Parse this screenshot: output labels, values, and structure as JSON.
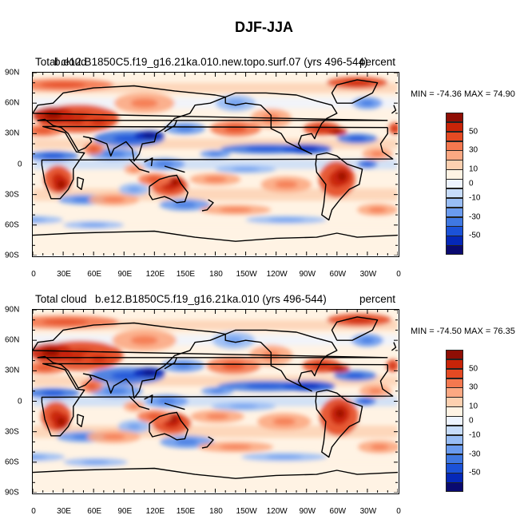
{
  "title": "DJF-JJA",
  "colors": {
    "palette": [
      "#0a0a70",
      "#0528b8",
      "#1b52d8",
      "#3f78e2",
      "#6a9bef",
      "#98bdf5",
      "#c7dcfa",
      "#eef4ff",
      "#fff3e4",
      "#fdd0b0",
      "#fca882",
      "#f4784f",
      "#e44a23",
      "#c82408",
      "#8f0e05"
    ],
    "land_outline": "#000000"
  },
  "icons": {
    "coastline": "coastline-outline",
    "tick": "axis-tick"
  },
  "axes": {
    "y_labels": [
      "90N",
      "60N",
      "30N",
      "0",
      "30S",
      "60S",
      "90S"
    ],
    "x_labels": [
      "0",
      "30E",
      "60E",
      "90E",
      "120E",
      "150E",
      "180",
      "150W",
      "120W",
      "90W",
      "60W",
      "30W",
      "0"
    ]
  },
  "colorbar": {
    "labels": [
      "50",
      "30",
      "10",
      "0",
      "-10",
      "-30",
      "-50"
    ],
    "levels": [
      -60,
      -50,
      -40,
      -30,
      -20,
      -10,
      -5,
      0,
      5,
      10,
      20,
      30,
      40,
      50,
      60
    ]
  },
  "panels": [
    {
      "left_label": "Total cloud",
      "case": "b.e12.B1850C5.f19_g16.21ka.010.new.topo.surf.07 (yrs 496-544)",
      "units": "percent",
      "minmax": "MIN = -74.36 MAX =  74.90",
      "min": -74.36,
      "max": 74.9
    },
    {
      "left_label": "Total cloud",
      "case": "b.e12.B1850C5.f19_g16.21ka.010 (yrs 496-544)",
      "units": "percent",
      "minmax": "MIN = -74.50 MAX =  76.35",
      "min": -74.5,
      "max": 76.35
    }
  ]
}
